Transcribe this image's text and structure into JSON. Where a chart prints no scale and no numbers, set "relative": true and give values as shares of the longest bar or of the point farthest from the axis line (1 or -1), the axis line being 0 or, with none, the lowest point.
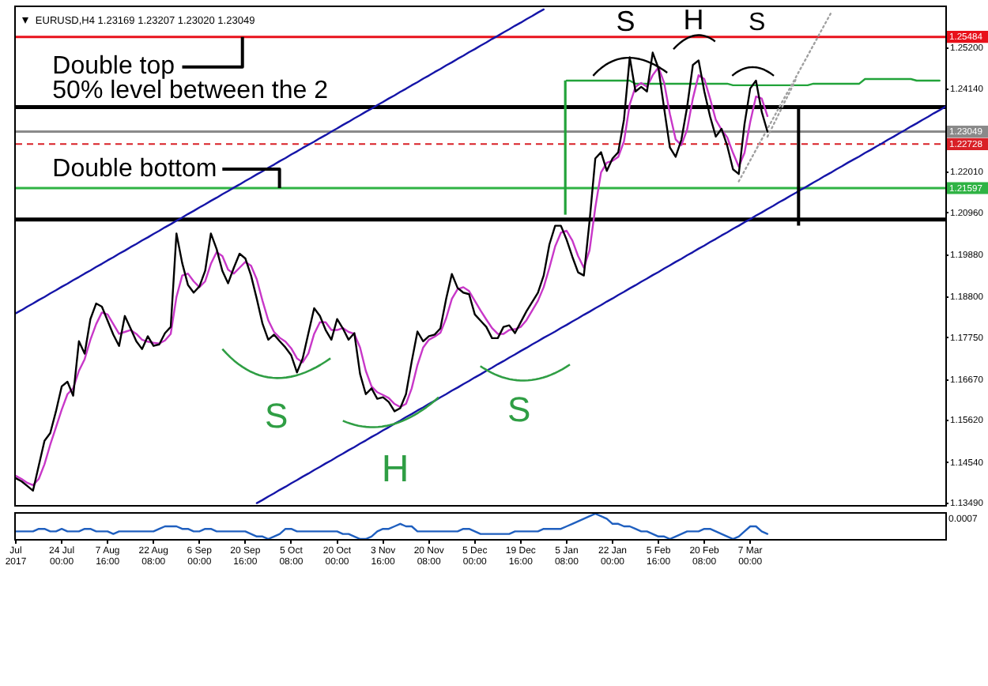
{
  "chart_data": [
    {
      "type": "line",
      "title": "EURUSD,H4 1.23169 1.23207 1.23020 1.23049",
      "categories": [
        null,
        null,
        null,
        null,
        null,
        null,
        null,
        null,
        null,
        null,
        null,
        null,
        null,
        null,
        null,
        null,
        null,
        null,
        null,
        null,
        null,
        null,
        null,
        null,
        null,
        null,
        null,
        null,
        null,
        null,
        null,
        null,
        null,
        null,
        null,
        null,
        null,
        null,
        null,
        null,
        null,
        null,
        null,
        null,
        null,
        null,
        null,
        null,
        null,
        null,
        null,
        null,
        null,
        null,
        null,
        null,
        null,
        null,
        null,
        null,
        null,
        null,
        null,
        null,
        null,
        null,
        null,
        null,
        null,
        null,
        null,
        null,
        null,
        null,
        null,
        null,
        null,
        null,
        null,
        null,
        null,
        null,
        null,
        null,
        null,
        null,
        null,
        null,
        null,
        null,
        null,
        null,
        null,
        null,
        null,
        null,
        null,
        null,
        null,
        null,
        null,
        null,
        null,
        null,
        null,
        null,
        null,
        null,
        null,
        null,
        null,
        null,
        null,
        null,
        null,
        null,
        null,
        null,
        null,
        null,
        null,
        null,
        null,
        null,
        null,
        null,
        null,
        null,
        null,
        null,
        null,
        null,
        null,
        null,
        null,
        null,
        null,
        null,
        null,
        null,
        null,
        null,
        null,
        null,
        null,
        null,
        null,
        null,
        null,
        null,
        null,
        null,
        null,
        null,
        null,
        null,
        null,
        null,
        null,
        null,
        null,
        null,
        null
      ],
      "series": [
        {
          "color": "#000000",
          "values": [
            1.1414,
            1.1406,
            1.1394,
            1.1382,
            1.1446,
            1.151,
            1.153,
            1.1586,
            1.165,
            1.1662,
            1.1626,
            1.1766,
            1.1734,
            1.1823,
            1.1863,
            1.1855,
            1.1819,
            1.1783,
            1.1754,
            1.1831,
            1.1799,
            1.1766,
            1.1746,
            1.1779,
            1.1754,
            1.1758,
            1.1787,
            1.1803,
            1.2043,
            1.1967,
            1.1911,
            1.1891,
            1.1907,
            1.1947,
            1.2043,
            1.2003,
            1.1947,
            1.1915,
            1.1955,
            1.1991,
            1.1979,
            1.1935,
            1.1875,
            1.1811,
            1.177,
            1.1783,
            1.1766,
            1.175,
            1.173,
            1.1686,
            1.1722,
            1.1787,
            1.1851,
            1.1831,
            1.1795,
            1.177,
            1.1823,
            1.1799,
            1.177,
            1.1787,
            1.1682,
            1.163,
            1.1645,
            1.1618,
            1.1622,
            1.161,
            1.1586,
            1.1594,
            1.163,
            1.1714,
            1.1791,
            1.1766,
            1.1779,
            1.1783,
            1.1799,
            1.1875,
            1.1939,
            1.1903,
            1.1891,
            1.1887,
            1.1835,
            1.1819,
            1.1803,
            1.1774,
            1.1774,
            1.1803,
            1.1807,
            1.1787,
            1.1815,
            1.1843,
            1.1867,
            1.1891,
            1.1935,
            1.2015,
            1.2063,
            1.2063,
            1.2027,
            1.1983,
            1.1943,
            1.1935,
            1.2075,
            1.2236,
            1.2252,
            1.2204,
            1.2236,
            1.2252,
            1.2336,
            1.2496,
            1.2408,
            1.242,
            1.2408,
            1.2508,
            1.2468,
            1.2364,
            1.2264,
            1.224,
            1.2284,
            1.2368,
            1.2476,
            1.2488,
            1.2408,
            1.2344,
            1.2292,
            1.2312,
            1.2268,
            1.2208,
            1.2196,
            1.2324,
            1.2416,
            1.2436,
            1.2356,
            1.2305,
            null,
            null,
            null,
            null,
            null,
            null,
            null,
            null,
            null,
            null,
            null,
            null,
            null,
            null,
            null,
            null,
            null,
            null,
            null,
            null,
            null,
            null,
            null,
            null,
            null,
            null,
            null,
            null,
            null,
            null,
            null
          ]
        },
        {
          "color": "#c837c8",
          "values": [
            1.142,
            1.1412,
            1.1402,
            1.1396,
            1.1412,
            1.145,
            1.15,
            1.1545,
            1.159,
            1.163,
            1.1645,
            1.169,
            1.172,
            1.177,
            1.181,
            1.184,
            1.1835,
            1.181,
            1.1785,
            1.179,
            1.1795,
            1.1785,
            1.177,
            1.1765,
            1.1762,
            1.176,
            1.1768,
            1.1785,
            1.188,
            1.1935,
            1.194,
            1.192,
            1.1905,
            1.192,
            1.1965,
            1.1995,
            1.1985,
            1.195,
            1.194,
            1.1955,
            1.197,
            1.196,
            1.1925,
            1.187,
            1.182,
            1.179,
            1.1775,
            1.1765,
            1.1748,
            1.1722,
            1.1712,
            1.1735,
            1.1785,
            1.1815,
            1.1815,
            1.1795,
            1.1795,
            1.18,
            1.179,
            1.1785,
            1.175,
            1.169,
            1.165,
            1.1635,
            1.1628,
            1.162,
            1.1605,
            1.1597,
            1.1605,
            1.1645,
            1.1705,
            1.175,
            1.177,
            1.1778,
            1.1788,
            1.1825,
            1.1875,
            1.19,
            1.1905,
            1.1895,
            1.187,
            1.1845,
            1.1822,
            1.18,
            1.1785,
            1.1785,
            1.1795,
            1.1797,
            1.1803,
            1.182,
            1.1845,
            1.187,
            1.1905,
            1.1955,
            1.201,
            1.2045,
            1.205,
            1.2025,
            1.1985,
            1.1955,
            1.2,
            1.211,
            1.22,
            1.2225,
            1.223,
            1.224,
            1.228,
            1.2375,
            1.242,
            1.243,
            1.242,
            1.245,
            1.247,
            1.243,
            1.235,
            1.2285,
            1.227,
            1.231,
            1.239,
            1.245,
            1.244,
            1.239,
            1.2335,
            1.231,
            1.229,
            1.225,
            1.2215,
            1.225,
            1.233,
            1.2395,
            1.239,
            1.2345,
            null,
            null,
            null,
            null,
            null,
            null,
            null,
            null,
            null,
            null,
            null,
            null,
            null,
            null,
            null,
            null,
            null,
            null,
            null,
            null,
            null,
            null,
            null,
            null,
            null,
            null,
            null,
            null,
            null,
            null,
            null
          ]
        },
        {
          "color": "#1515a8",
          "values": [
            1.1838,
            1.1846,
            1.1855,
            1.1863,
            1.1872,
            1.188,
            1.1889,
            1.1897,
            1.1906,
            1.1914,
            1.1923,
            1.1931,
            1.194,
            1.1948,
            1.1957,
            1.1965,
            1.1974,
            1.1982,
            1.1991,
            1.1999,
            1.2008,
            1.2016,
            1.2025,
            1.2033,
            1.2042,
            1.205,
            1.2059,
            1.2067,
            1.2076,
            1.2084,
            1.2093,
            1.2101,
            1.211,
            1.2118,
            1.2127,
            1.2135,
            1.2144,
            1.2152,
            1.2161,
            1.2169,
            1.2178,
            1.2186,
            1.2195,
            1.2203,
            1.2212,
            1.222,
            1.2229,
            1.2237,
            1.2246,
            1.2254,
            1.2263,
            1.2271,
            1.2279,
            1.2288,
            1.2296,
            1.2305,
            1.2313,
            1.2322,
            1.233,
            1.2339,
            1.2347,
            1.2356,
            1.2364,
            1.2373,
            1.2381,
            1.239,
            1.2398,
            1.2407,
            1.2415,
            1.2424,
            1.2432,
            1.2441,
            1.2449,
            1.2458,
            1.2466,
            1.2475,
            1.2483,
            1.2492,
            1.25,
            1.2509,
            1.2517,
            1.2526,
            1.2534,
            1.2543,
            1.2551,
            1.256,
            1.2568,
            1.2577,
            1.2585,
            1.2594,
            1.2602,
            1.2611,
            1.2619,
            null,
            null,
            null,
            null,
            null,
            null,
            null,
            null,
            null,
            null,
            null,
            null,
            null,
            null,
            null,
            null,
            null,
            null,
            null,
            null,
            null,
            null,
            null,
            null,
            null,
            null,
            null,
            null,
            null,
            null,
            null,
            null,
            null,
            null,
            null,
            null,
            null,
            null,
            null,
            null,
            null,
            null,
            null,
            null,
            null,
            null,
            null,
            null,
            null,
            null,
            null,
            null,
            null,
            null,
            null,
            null,
            null,
            null,
            null,
            null,
            null,
            null,
            null,
            null,
            null,
            null,
            null,
            null,
            null,
            null
          ]
        },
        {
          "color": "#1515a8",
          "values": [
            null,
            null,
            null,
            null,
            null,
            null,
            null,
            null,
            null,
            null,
            null,
            null,
            null,
            null,
            null,
            null,
            null,
            null,
            null,
            null,
            null,
            null,
            null,
            null,
            null,
            null,
            null,
            null,
            null,
            null,
            null,
            null,
            null,
            null,
            null,
            null,
            null,
            null,
            null,
            null,
            null,
            null,
            1.135,
            1.1358,
            1.1367,
            1.1375,
            1.1384,
            1.1392,
            1.1401,
            1.1409,
            1.1418,
            1.1426,
            1.1435,
            1.1443,
            1.1452,
            1.146,
            1.1469,
            1.1477,
            1.1486,
            1.1494,
            1.1503,
            1.1511,
            1.152,
            1.1528,
            1.1537,
            1.1545,
            1.1554,
            1.1562,
            1.1571,
            1.1579,
            1.1588,
            1.1596,
            1.1605,
            1.1613,
            1.1622,
            1.163,
            1.1639,
            1.1647,
            1.1656,
            1.1664,
            1.1673,
            1.1681,
            1.169,
            1.1698,
            1.1707,
            1.1715,
            1.1724,
            1.1732,
            1.1741,
            1.1749,
            1.1758,
            1.1766,
            1.1775,
            1.1783,
            1.1791,
            1.18,
            1.1808,
            1.1817,
            1.1825,
            1.1834,
            1.1842,
            1.1851,
            1.1859,
            1.1868,
            1.1876,
            1.1885,
            1.1893,
            1.1902,
            1.191,
            1.1919,
            1.1927,
            1.1936,
            1.1944,
            1.1953,
            1.1961,
            1.197,
            1.1978,
            1.1987,
            1.1995,
            1.2004,
            1.2012,
            1.2021,
            1.2029,
            1.2038,
            1.2046,
            1.2055,
            1.2063,
            1.2072,
            1.208,
            1.2089,
            1.2097,
            1.2106,
            1.2114,
            1.2123,
            1.2131,
            1.214,
            1.2148,
            1.2157,
            1.2165,
            1.2174,
            1.2182,
            1.2191,
            1.2199,
            1.2208,
            1.2216,
            1.2225,
            1.2233,
            1.2241,
            1.225,
            1.2258,
            1.2267,
            1.2275,
            1.2284,
            1.2292,
            1.2301,
            1.2309,
            1.2318,
            1.2326,
            1.2335,
            1.2343,
            1.2352,
            1.236,
            1.2369
          ]
        },
        {
          "color": "#a0a0a0",
          "line_style": "dotted",
          "values": [
            null,
            null,
            null,
            null,
            null,
            null,
            null,
            null,
            null,
            null,
            null,
            null,
            null,
            null,
            null,
            null,
            null,
            null,
            null,
            null,
            null,
            null,
            null,
            null,
            null,
            null,
            null,
            null,
            null,
            null,
            null,
            null,
            null,
            null,
            null,
            null,
            null,
            null,
            null,
            null,
            null,
            null,
            null,
            null,
            null,
            null,
            null,
            null,
            null,
            null,
            null,
            null,
            null,
            null,
            null,
            null,
            null,
            null,
            null,
            null,
            null,
            null,
            null,
            null,
            null,
            null,
            null,
            null,
            null,
            null,
            null,
            null,
            null,
            null,
            null,
            null,
            null,
            null,
            null,
            null,
            null,
            null,
            null,
            null,
            null,
            null,
            null,
            null,
            null,
            null,
            null,
            null,
            null,
            null,
            null,
            null,
            null,
            null,
            null,
            null,
            null,
            null,
            null,
            null,
            null,
            null,
            null,
            null,
            null,
            null,
            null,
            null,
            null,
            null,
            null,
            null,
            null,
            null,
            null,
            null,
            null,
            null,
            null,
            null,
            null,
            null,
            1.2177,
            1.2204,
            1.2231,
            1.2258,
            1.2285,
            1.2312,
            1.2339,
            1.2366,
            1.2393,
            1.2419,
            1.2446,
            1.2473,
            1.25,
            1.2527,
            1.2554,
            1.2581,
            1.2608,
            null,
            null,
            null,
            null,
            null,
            null,
            null,
            null,
            null,
            null,
            null,
            null,
            null,
            null,
            null,
            null,
            null,
            null,
            null,
            null
          ]
        },
        {
          "color": "#a0a0a0",
          "line_style": "dotted",
          "values": [
            null,
            null,
            null,
            null,
            null,
            null,
            null,
            null,
            null,
            null,
            null,
            null,
            null,
            null,
            null,
            null,
            null,
            null,
            null,
            null,
            null,
            null,
            null,
            null,
            null,
            null,
            null,
            null,
            null,
            null,
            null,
            null,
            null,
            null,
            null,
            null,
            null,
            null,
            null,
            null,
            null,
            null,
            null,
            null,
            null,
            null,
            null,
            null,
            null,
            null,
            null,
            null,
            null,
            null,
            null,
            null,
            null,
            null,
            null,
            null,
            null,
            null,
            null,
            null,
            null,
            null,
            null,
            null,
            null,
            null,
            null,
            null,
            null,
            null,
            null,
            null,
            null,
            null,
            null,
            null,
            null,
            null,
            null,
            null,
            null,
            null,
            null,
            null,
            null,
            null,
            null,
            null,
            null,
            null,
            null,
            null,
            null,
            null,
            null,
            null,
            null,
            null,
            null,
            null,
            null,
            null,
            null,
            null,
            null,
            null,
            null,
            null,
            null,
            null,
            null,
            null,
            null,
            null,
            null,
            null,
            null,
            null,
            null,
            null,
            null,
            null,
            null,
            null,
            null,
            null,
            null,
            1.2292,
            1.2321,
            1.2351,
            1.2381,
            1.241,
            1.2441,
            null,
            null,
            null,
            null,
            null,
            null,
            null,
            null,
            null,
            null,
            null,
            null,
            null,
            null,
            null,
            null,
            null,
            null,
            null,
            null,
            null,
            null,
            null,
            null,
            null,
            null
          ]
        },
        {
          "color": "#22a33a",
          "values": [
            null,
            null,
            null,
            null,
            null,
            null,
            null,
            null,
            null,
            null,
            null,
            null,
            null,
            null,
            null,
            null,
            null,
            null,
            null,
            null,
            null,
            null,
            null,
            null,
            null,
            null,
            null,
            null,
            null,
            null,
            null,
            null,
            null,
            null,
            null,
            null,
            null,
            null,
            null,
            null,
            null,
            null,
            null,
            null,
            null,
            null,
            null,
            null,
            null,
            null,
            null,
            null,
            null,
            null,
            null,
            null,
            null,
            null,
            null,
            null,
            null,
            null,
            null,
            null,
            null,
            null,
            null,
            null,
            null,
            null,
            null,
            null,
            null,
            null,
            null,
            null,
            null,
            null,
            null,
            null,
            null,
            null,
            null,
            null,
            null,
            null,
            null,
            null,
            null,
            null,
            null,
            null,
            null,
            null,
            null,
            null,
            1.2436,
            1.2436,
            1.2436,
            1.2436,
            1.2436,
            1.2436,
            1.2436,
            1.2436,
            1.2436,
            1.2436,
            1.2436,
            1.2436,
            1.2428,
            1.2428,
            1.2428,
            1.2428,
            1.2428,
            1.2428,
            1.2428,
            1.2428,
            1.2428,
            1.2428,
            1.2428,
            1.2428,
            1.2428,
            1.2428,
            1.2428,
            1.2428,
            1.2428,
            1.2424,
            1.2424,
            1.2424,
            1.2424,
            1.2424,
            1.2424,
            1.2424,
            1.2424,
            1.2424,
            1.2424,
            1.2424,
            1.2424,
            1.2424,
            1.2424,
            1.2428,
            1.2428,
            1.2428,
            1.2428,
            1.2428,
            1.2428,
            1.2428,
            1.2428,
            1.2428,
            1.244,
            1.244,
            1.244,
            1.244,
            1.244,
            1.244,
            1.244,
            1.244,
            1.244,
            1.2436,
            1.2436,
            1.2436,
            1.2436,
            1.2436,
            null
          ]
        }
      ],
      "ylim": [
        1.1345,
        1.2625
      ],
      "yticks": [
        {
          "value": 1.252,
          "label": "1.25200"
        },
        {
          "value": 1.2414,
          "label": "1.24140"
        },
        {
          "value": 1.2201,
          "label": "1.22010"
        },
        {
          "value": 1.2096,
          "label": "1.20960"
        },
        {
          "value": 1.1988,
          "label": "1.19880"
        },
        {
          "value": 1.188,
          "label": "1.18800"
        },
        {
          "value": 1.1775,
          "label": "1.17750"
        },
        {
          "value": 1.1667,
          "label": "1.16670"
        },
        {
          "value": 1.1562,
          "label": "1.15620"
        },
        {
          "value": 1.1454,
          "label": "1.14540"
        },
        {
          "value": 1.1349,
          "label": "1.13490"
        }
      ],
      "ref_lines": [
        {
          "axis": "y",
          "value": 1.25484,
          "label": "1.25484",
          "color": "#e8111b"
        },
        {
          "axis": "y",
          "value": 1.2368,
          "color": "#000000"
        },
        {
          "axis": "y",
          "value": 1.23049,
          "label": "1.23049",
          "color": "#8a8a8a"
        },
        {
          "axis": "y",
          "value": 1.22728,
          "label": "1.22728",
          "color": "#d92027",
          "line_style": "dashed"
        },
        {
          "axis": "y",
          "value": 1.21597,
          "label": "1.21597",
          "color": "#2fb344"
        },
        {
          "axis": "y",
          "value": 1.2079,
          "color": "#000000"
        }
      ],
      "annotations": [
        {
          "text": "Double top",
          "y": 1.25484
        },
        {
          "text": "50% level between the 2",
          "y": 1.2368
        },
        {
          "text": "Double bottom",
          "y": 1.21597
        },
        "S",
        "H",
        "S",
        "S",
        "H",
        "S"
      ],
      "marker": "none",
      "tick_labels": "y"
    },
    {
      "type": "line",
      "categories": [
        "Jul 2017",
        null,
        null,
        null,
        null,
        null,
        null,
        null,
        "24 Jul 00:00",
        null,
        null,
        null,
        null,
        null,
        null,
        null,
        "7 Aug 16:00",
        null,
        null,
        null,
        null,
        null,
        null,
        null,
        "22 Aug 08:00",
        null,
        null,
        null,
        null,
        null,
        null,
        null,
        "6 Sep 00:00",
        null,
        null,
        null,
        null,
        null,
        null,
        null,
        "20 Sep 16:00",
        null,
        null,
        null,
        null,
        null,
        null,
        null,
        "5 Oct 08:00",
        null,
        null,
        null,
        null,
        null,
        null,
        null,
        "20 Oct 00:00",
        null,
        null,
        null,
        null,
        null,
        null,
        null,
        "3 Nov 16:00",
        null,
        null,
        null,
        null,
        null,
        null,
        null,
        "20 Nov 08:00",
        null,
        null,
        null,
        null,
        null,
        null,
        null,
        "5 Dec 00:00",
        null,
        null,
        null,
        null,
        null,
        null,
        null,
        "19 Dec 16:00",
        null,
        null,
        null,
        null,
        null,
        null,
        null,
        "5 Jan 08:00",
        null,
        null,
        null,
        null,
        null,
        null,
        null,
        "22 Jan 00:00",
        null,
        null,
        null,
        null,
        null,
        null,
        null,
        "5 Feb 16:00",
        null,
        null,
        null,
        null,
        null,
        null,
        null,
        "20 Feb 08:00",
        null,
        null,
        null,
        null,
        null,
        null,
        null,
        "7 Mar 00:00",
        null,
        null,
        null,
        null,
        null,
        null,
        null,
        null,
        null,
        null,
        null,
        null,
        null,
        null,
        null,
        null,
        null,
        null,
        null,
        null,
        null,
        null,
        null,
        null,
        null,
        null,
        null,
        null,
        null,
        null,
        null,
        null,
        null,
        null
      ],
      "series": [
        {
          "color": "#1f5fbf",
          "values": [
            0.3,
            0.3,
            0.3,
            0.3,
            0.4,
            0.4,
            0.3,
            0.3,
            0.4,
            0.3,
            0.3,
            0.3,
            0.4,
            0.4,
            0.3,
            0.3,
            0.3,
            0.2,
            0.3,
            0.3,
            0.3,
            0.3,
            0.3,
            0.3,
            0.3,
            0.4,
            0.5,
            0.5,
            0.5,
            0.4,
            0.4,
            0.3,
            0.3,
            0.4,
            0.4,
            0.3,
            0.3,
            0.3,
            0.3,
            0.3,
            0.3,
            0.2,
            0.1,
            0.1,
            0,
            0.1,
            0.2,
            0.4,
            0.4,
            0.3,
            0.3,
            0.3,
            0.3,
            0.3,
            0.3,
            0.3,
            0.3,
            0.2,
            0.2,
            0.1,
            0,
            0,
            0.1,
            0.3,
            0.4,
            0.4,
            0.5,
            0.6,
            0.5,
            0.5,
            0.3,
            0.3,
            0.3,
            0.3,
            0.3,
            0.3,
            0.3,
            0.3,
            0.4,
            0.4,
            0.3,
            0.2,
            0.2,
            0.2,
            0.2,
            0.2,
            0.2,
            0.3,
            0.3,
            0.3,
            0.3,
            0.3,
            0.4,
            0.4,
            0.4,
            0.4,
            0.5,
            0.6,
            0.7,
            0.8,
            0.9,
            1,
            0.9,
            0.8,
            0.6,
            0.6,
            0.5,
            0.5,
            0.4,
            0.3,
            0.3,
            0.2,
            0.1,
            0.1,
            0,
            0.1,
            0.2,
            0.3,
            0.3,
            0.3,
            0.4,
            0.4,
            0.3,
            0.2,
            0.1,
            0,
            0.1,
            0.3,
            0.5,
            0.5,
            0.3,
            0.2,
            null,
            null,
            null,
            null,
            null,
            null,
            null,
            null,
            null,
            null,
            null,
            null,
            null,
            null,
            null,
            null,
            null,
            null,
            null,
            null,
            null,
            null,
            null,
            null,
            null,
            null,
            null,
            null,
            null,
            null,
            null
          ]
        }
      ],
      "relative": true,
      "annotations": [
        "0.0007"
      ],
      "marker": "none",
      "tick_labels": "x"
    }
  ]
}
